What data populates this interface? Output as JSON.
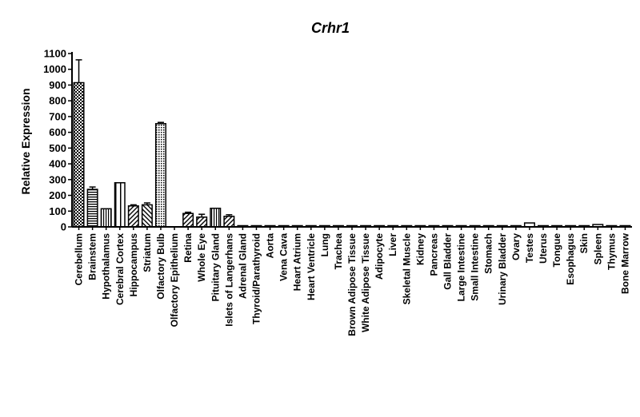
{
  "chart_data": {
    "type": "bar",
    "title": "Crhr1",
    "ylabel": "Relative Expression",
    "xlabel": "",
    "ylim": [
      0,
      1100
    ],
    "yticks": [
      0,
      100,
      200,
      300,
      400,
      500,
      600,
      700,
      800,
      900,
      1000,
      1100
    ],
    "grid": false,
    "legend": "none",
    "categories": [
      "Cerebellum",
      "Brainstem",
      "Hypothalamus",
      "Cerebral Cortex",
      "Hippocampus",
      "Striatum",
      "Olfactory Bulb",
      "Olfactory Epithelium",
      "Retina",
      "Whole Eye",
      "Pituitary Gland",
      "Islets of Langerhans",
      "Adrenal Gland",
      "Thyroid/Parathyroid",
      "Aorta",
      "Vena Cava",
      "Heart Atrium",
      "Heart Ventricle",
      "Lung",
      "Trachea",
      "Brown Adipose Tissue",
      "White Adipose Tissue",
      "Adipocyte",
      "Liver",
      "Skeletal Muscle",
      "Kidney",
      "Pancreas",
      "Gall Bladder",
      "Large Intestine",
      "Small Intestine",
      "Stomach",
      "Urinary Bladder",
      "Ovary",
      "Testes",
      "Uterus",
      "Tongue",
      "Esophagus",
      "Skin",
      "Spleen",
      "Thymus",
      "Bone Marrow"
    ],
    "values": [
      915,
      238,
      115,
      280,
      133,
      140,
      655,
      0,
      85,
      62,
      118,
      67,
      3,
      2,
      2,
      2,
      2,
      2,
      2,
      2,
      2,
      2,
      2,
      2,
      2,
      2,
      2,
      2,
      2,
      2,
      2,
      3,
      2,
      25,
      2,
      2,
      2,
      2,
      15,
      2,
      2
    ],
    "errors": [
      145,
      15,
      0,
      0,
      7,
      12,
      8,
      0,
      8,
      18,
      0,
      10,
      0,
      0,
      0,
      0,
      0,
      0,
      0,
      0,
      0,
      0,
      0,
      0,
      0,
      0,
      0,
      0,
      0,
      0,
      0,
      0,
      0,
      0,
      0,
      0,
      0,
      0,
      0,
      0,
      0
    ],
    "patterns": [
      "checker",
      "hstripe",
      "vstripe",
      "vstripe-wide",
      "diag-down",
      "diag-up",
      "dotted",
      "none",
      "diag-down",
      "diag-down",
      "vstripe",
      "diag-down",
      "none",
      "none",
      "none",
      "none",
      "none",
      "none",
      "none",
      "none",
      "none",
      "none",
      "none",
      "none",
      "none",
      "none",
      "none",
      "none",
      "none",
      "none",
      "none",
      "none",
      "none",
      "none",
      "none",
      "none",
      "none",
      "none",
      "none",
      "none",
      "none"
    ]
  }
}
